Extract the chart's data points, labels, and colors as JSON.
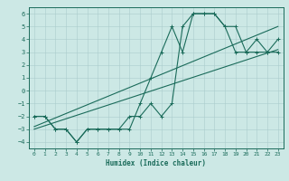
{
  "xlabel": "Humidex (Indice chaleur)",
  "bg_color": "#cce8e5",
  "line_color": "#1a6b5a",
  "grid_color": "#aacccc",
  "xlim": [
    -0.5,
    23.5
  ],
  "ylim": [
    -4.5,
    6.5
  ],
  "xticks": [
    0,
    1,
    2,
    3,
    4,
    5,
    6,
    7,
    8,
    9,
    10,
    11,
    12,
    13,
    14,
    15,
    16,
    17,
    18,
    19,
    20,
    21,
    22,
    23
  ],
  "yticks": [
    -4,
    -3,
    -2,
    -1,
    0,
    1,
    2,
    3,
    4,
    5,
    6
  ],
  "line1_x": [
    0,
    1,
    2,
    3,
    4,
    5,
    6,
    7,
    8,
    9,
    10,
    11,
    12,
    13,
    14,
    15,
    16,
    17,
    18,
    19,
    20,
    21,
    22,
    23
  ],
  "line1_y": [
    -2,
    -2,
    -3,
    -3,
    -4,
    -3,
    -3,
    -3,
    -3,
    -2,
    -2,
    -1,
    -2,
    -1,
    5,
    6,
    6,
    6,
    5,
    5,
    3,
    4,
    3,
    4
  ],
  "line2_x": [
    0,
    1,
    2,
    3,
    4,
    5,
    6,
    7,
    8,
    9,
    10,
    11,
    12,
    13,
    14,
    15,
    16,
    17,
    18,
    19,
    20,
    21,
    22,
    23
  ],
  "line2_y": [
    -2,
    -2,
    -3,
    -3,
    -4,
    -3,
    -3,
    -3,
    -3,
    -3,
    -1,
    1,
    3,
    5,
    3,
    6,
    6,
    6,
    5,
    3,
    3,
    3,
    3,
    3
  ],
  "reg_line1_x": [
    0,
    23
  ],
  "reg_line1_y": [
    -3.0,
    3.2
  ],
  "reg_line2_x": [
    0,
    23
  ],
  "reg_line2_y": [
    -2.8,
    5.0
  ]
}
